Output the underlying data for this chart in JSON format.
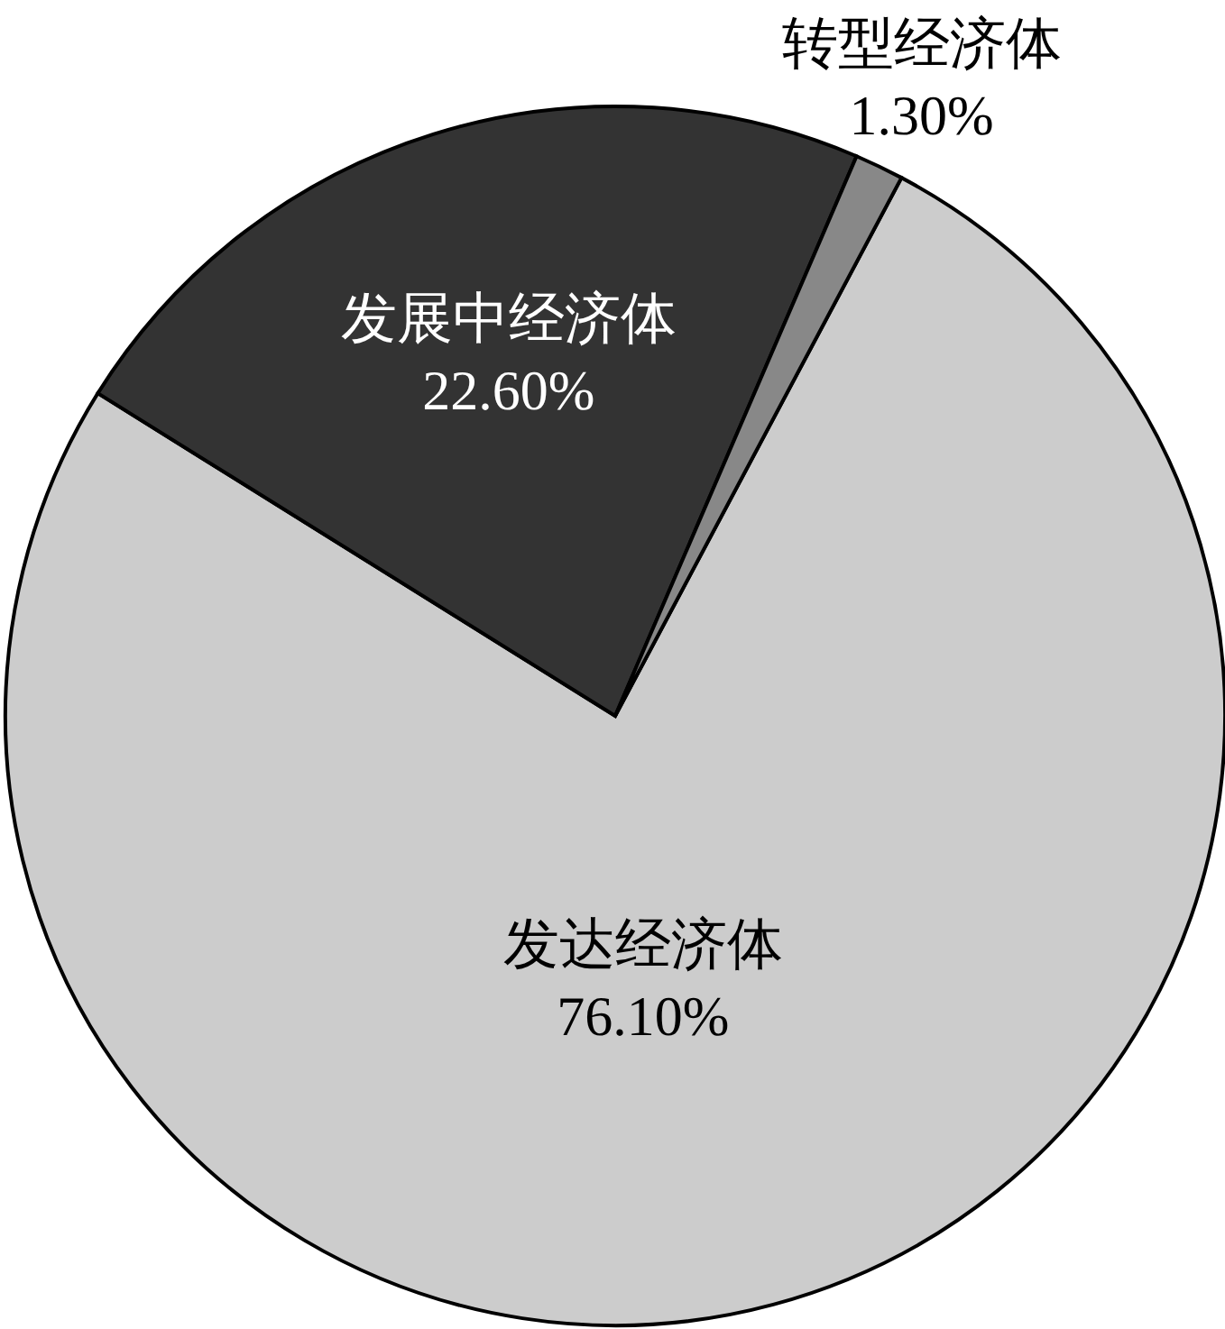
{
  "chart_data": {
    "type": "pie",
    "categories": [
      "发达经济体",
      "发展中经济体",
      "转型经济体"
    ],
    "values": [
      76.1,
      22.6,
      1.3
    ],
    "colors": [
      "#cccccc",
      "#333333",
      "#888888"
    ],
    "value_labels": [
      "76.10%",
      "22.60%",
      "1.30%"
    ]
  }
}
